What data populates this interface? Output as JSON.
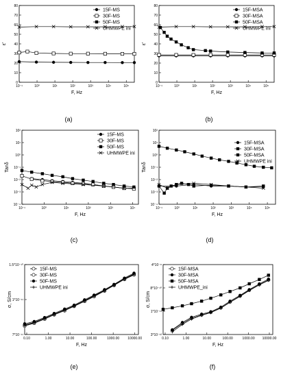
{
  "chart_data": [
    {
      "type": "line",
      "panel": "(a)",
      "caption": "(a)",
      "xlabel": "F, Hz",
      "ylabel": "ε'",
      "xscale": "log",
      "xlim": [
        0.1,
        500000
      ],
      "ylim": [
        0,
        80
      ],
      "x_ticks": [
        "10⁻¹",
        "10⁰",
        "10¹",
        "10²",
        "10³",
        "10⁴",
        "10⁵"
      ],
      "y_ticks": [
        "0",
        "10",
        "20",
        "30",
        "40",
        "50",
        "60",
        "70",
        "80"
      ],
      "legend_position": "top-right",
      "series": [
        {
          "name": "15F-MS",
          "marker": "filled-circle",
          "x": [
            0.1,
            1,
            10,
            100,
            1000,
            10000,
            100000,
            500000
          ],
          "y": [
            21.5,
            21,
            20.8,
            20.7,
            20.6,
            20.6,
            20.5,
            20.5
          ]
        },
        {
          "name": "30F-MS",
          "marker": "open-square",
          "x": [
            0.1,
            0.3,
            1,
            10,
            100,
            1000,
            10000,
            100000,
            500000
          ],
          "y": [
            31,
            32,
            30.5,
            30,
            29.8,
            29.8,
            29.7,
            29.6,
            29.6
          ]
        },
        {
          "name": "50F-MS",
          "marker": "filled-square",
          "x": [],
          "y": []
        },
        {
          "name": "UHMWPE ini",
          "marker": "x",
          "x": [
            0.1,
            1,
            10,
            100,
            1000,
            10000,
            100000,
            500000
          ],
          "y": [
            57.5,
            58,
            58,
            57.8,
            57.8,
            57.8,
            58,
            58
          ]
        }
      ]
    },
    {
      "type": "line",
      "panel": "(b)",
      "caption": "(b)",
      "xlabel": "F, Hz",
      "ylabel": "ε'",
      "xscale": "log",
      "xlim": [
        0.1,
        500000
      ],
      "ylim": [
        0,
        80
      ],
      "x_ticks": [
        "10⁻¹",
        "10⁰",
        "10¹",
        "10²",
        "10³",
        "10⁴",
        "10⁵"
      ],
      "y_ticks": [
        "0",
        "10",
        "20",
        "30",
        "40",
        "50",
        "60",
        "70",
        "80"
      ],
      "legend_position": "top-right",
      "series": [
        {
          "name": "15F-MSA",
          "marker": "filled-circle",
          "x": [
            0.1,
            1,
            10,
            100,
            1000,
            10000,
            100000,
            500000
          ],
          "y": [
            27.5,
            27.5,
            27.5,
            27.5,
            27.5,
            27.5,
            27.5,
            27.5
          ]
        },
        {
          "name": "30F-MSA",
          "marker": "open-square",
          "x": [
            0.1,
            1,
            10,
            100,
            1000,
            10000,
            100000,
            500000
          ],
          "y": [
            28.5,
            28.5,
            28.5,
            28.5,
            28.5,
            28.5,
            28.5,
            28.5
          ]
        },
        {
          "name": "50F-MSA",
          "marker": "filled-square",
          "x": [
            0.12,
            0.2,
            0.3,
            0.5,
            1,
            2,
            5,
            10,
            50,
            100,
            1000,
            10000,
            100000,
            500000
          ],
          "y": [
            57,
            52,
            48,
            45,
            42,
            39,
            36,
            34,
            33,
            32.5,
            31.5,
            31,
            30.5,
            30.5
          ]
        },
        {
          "name": "UHMWPE ini",
          "marker": "x",
          "x": [
            0.1,
            1,
            10,
            100,
            1000,
            10000,
            100000,
            500000
          ],
          "y": [
            57.5,
            58,
            58,
            57.8,
            57.8,
            57.8,
            58,
            58
          ]
        }
      ]
    },
    {
      "type": "scatter",
      "panel": "(c)",
      "caption": "(c)",
      "xlabel": "F, Hz",
      "ylabel": "Tanδ",
      "xscale": "log",
      "yscale": "log",
      "xlim": [
        0.1,
        50000
      ],
      "ylim": [
        0.0001,
        100
      ],
      "x_ticks": [
        "10⁻¹",
        "10⁰",
        "10¹",
        "10²",
        "10³",
        "10⁴"
      ],
      "y_ticks": [
        "10⁻⁴",
        "10⁻³",
        "10⁻²",
        "10⁻¹",
        "10⁰",
        "10¹",
        "10²"
      ],
      "legend_position": "top-right",
      "series": [
        {
          "name": "15F-MS",
          "marker": "filled-circle",
          "x": [
            0.3,
            1,
            3,
            10,
            30,
            100,
            300,
            1000,
            3000,
            10000,
            30000
          ],
          "y": [
            0.012,
            0.01,
            0.008,
            0.007,
            0.006,
            0.005,
            0.004,
            0.003,
            0.0025,
            0.002,
            0.002
          ]
        },
        {
          "name": "30F-MS",
          "marker": "open-square",
          "x": [
            0.1,
            0.3,
            1,
            3,
            10,
            30,
            100,
            300,
            1000,
            3000,
            10000,
            30000
          ],
          "y": [
            0.02,
            0.011,
            0.008,
            0.007,
            0.006,
            0.005,
            0.0045,
            0.004,
            0.003,
            0.0025,
            0.002,
            0.0018
          ]
        },
        {
          "name": "50F-MS",
          "marker": "filled-square",
          "x": [
            0.1,
            0.3,
            1,
            3,
            10,
            30,
            100,
            300,
            1000,
            3000,
            10000,
            30000
          ],
          "y": [
            0.055,
            0.04,
            0.03,
            0.022,
            0.017,
            0.012,
            0.009,
            0.007,
            0.005,
            0.004,
            0.003,
            0.0025
          ]
        },
        {
          "name": "UHMWPE ini",
          "marker": "x",
          "x": [
            0.1,
            0.2,
            0.3,
            0.5,
            1,
            3,
            10,
            100,
            1000,
            10000
          ],
          "y": [
            0.004,
            0.002,
            0.0035,
            0.0025,
            0.004,
            0.006,
            0.005,
            0.004,
            0.003,
            0.002
          ]
        }
      ]
    },
    {
      "type": "scatter",
      "panel": "(d)",
      "caption": "(d)",
      "xlabel": "F, Hz",
      "ylabel": "Tanδ",
      "xscale": "log",
      "yscale": "log",
      "xlim": [
        0.1,
        500000
      ],
      "ylim": [
        0.0001,
        100
      ],
      "x_ticks": [
        "10⁻¹",
        "10⁰",
        "10¹",
        "10²",
        "10³",
        "10⁴",
        "10⁵"
      ],
      "y_ticks": [
        "10⁻⁴",
        "10⁻³",
        "10⁻²",
        "10⁻¹",
        "10⁰",
        "10¹",
        "10²"
      ],
      "legend_position": "center-right",
      "series": [
        {
          "name": "15F-MSA",
          "marker": "filled-circle",
          "x": [
            0.1,
            1,
            10,
            100,
            1000,
            10000,
            100000
          ],
          "y": [
            0.003,
            0.003,
            0.004,
            0.003,
            0.003,
            0.0025,
            0.0025
          ]
        },
        {
          "name": "30F-MSA",
          "marker": "filled-square",
          "x": [
            0.1,
            0.2,
            0.3,
            0.5,
            1,
            2,
            5,
            10,
            100,
            1000,
            10000,
            100000
          ],
          "y": [
            0.003,
            0.0008,
            0.002,
            0.003,
            0.004,
            0.005,
            0.004,
            0.003,
            0.0035,
            0.003,
            0.0025,
            0.003
          ]
        },
        {
          "name": "50F-MSA",
          "marker": "filled-square",
          "x": [
            0.1,
            0.3,
            1,
            3,
            10,
            30,
            100,
            300,
            1000,
            3000,
            10000,
            30000,
            100000,
            300000
          ],
          "y": [
            5,
            3.5,
            2.5,
            1.8,
            1.2,
            0.8,
            0.55,
            0.4,
            0.3,
            0.22,
            0.16,
            0.12,
            0.1,
            0.09
          ]
        },
        {
          "name": "UHMWPE ini",
          "marker": "x",
          "x": [
            0.1,
            0.3,
            1,
            10,
            100,
            1000,
            10000,
            100000
          ],
          "y": [
            0.004,
            0.002,
            0.004,
            0.005,
            0.004,
            0.003,
            0.0025,
            0.002
          ]
        }
      ]
    },
    {
      "type": "line",
      "panel": "(e)",
      "caption": "(e)",
      "xlabel": "F, Hz",
      "ylabel": "σ, S/cm",
      "xscale": "log",
      "yscale": "log",
      "xlim": [
        0.1,
        50000
      ],
      "ylim": [
        1e-12,
        3e-10
      ],
      "x_ticks": [
        "0.10",
        "1.00",
        "10.00",
        "100.00",
        "1000.00",
        "10000.00"
      ],
      "y_ticks": [
        "7*10⁻¹¹",
        "1*10⁻¹¹",
        "1.5*10⁻¹⁰"
      ],
      "legend_position": "top-left",
      "series": [
        {
          "name": "15F-MS",
          "marker": "line-open-circle",
          "x": [
            0.1,
            0.3,
            1,
            3,
            10,
            30,
            100,
            300,
            1000,
            3000,
            10000,
            30000
          ],
          "y": [
            2e-12,
            2.5e-12,
            3.5e-12,
            5e-12,
            7e-12,
            1e-11,
            1.5e-11,
            2.2e-11,
            3.5e-11,
            5.5e-11,
            9e-11,
            1.3e-10
          ]
        },
        {
          "name": "30F-MS",
          "marker": "line-open-circle",
          "x": [
            0.1,
            0.3,
            1,
            3,
            10,
            30,
            100,
            300,
            1000,
            3000,
            10000,
            30000
          ],
          "y": [
            2.2e-12,
            2.7e-12,
            3.8e-12,
            5.3e-12,
            7.5e-12,
            1.05e-11,
            1.6e-11,
            2.4e-11,
            3.7e-11,
            5.8e-11,
            9.5e-11,
            1.4e-10
          ]
        },
        {
          "name": "50F-MS",
          "marker": "line-filled-circle",
          "x": [
            0.1,
            0.3,
            1,
            3,
            10,
            30,
            100,
            300,
            1000,
            3000,
            10000,
            30000
          ],
          "y": [
            2.4e-12,
            2.9e-12,
            4e-12,
            5.6e-12,
            8e-12,
            1.1e-11,
            1.7e-11,
            2.5e-11,
            3.9e-11,
            6e-11,
            1e-10,
            1.5e-10
          ]
        },
        {
          "name": "UHMWPE ini",
          "marker": "line-cross",
          "x": [
            0.1,
            0.3,
            1,
            3,
            10,
            30,
            100,
            300,
            1000,
            3000,
            10000,
            30000
          ],
          "y": [
            2.1e-12,
            2.6e-12,
            3.6e-12,
            5.1e-12,
            7.2e-12,
            1e-11,
            1.55e-11,
            2.3e-11,
            3.6e-11,
            5.6e-11,
            9.2e-11,
            1.35e-10
          ]
        }
      ]
    },
    {
      "type": "line",
      "panel": "(f)",
      "caption": "(f)",
      "xlabel": "F, Hz",
      "ylabel": "σ, S/cm",
      "xscale": "log",
      "yscale": "log",
      "xlim": [
        0.1,
        50000
      ],
      "ylim": [
        1e-12,
        1e-09
      ],
      "x_ticks": [
        "0.10",
        "1.00",
        "10.00",
        "100.00",
        "1000.00",
        "10000.00"
      ],
      "y_ticks": [
        "3*10⁻¹²",
        "1*10⁻¹¹",
        "8*10⁻¹⁰",
        "4*10⁻⁸"
      ],
      "legend_position": "top-left",
      "series": [
        {
          "name": "15F-MSA",
          "marker": "line-open-circle",
          "x": [
            0.3,
            1,
            3,
            10,
            30,
            100,
            300,
            1000,
            3000,
            10000,
            30000
          ],
          "y": [
            1.5e-12,
            3e-12,
            5e-12,
            7e-12,
            9e-12,
            1.4e-11,
            2.5e-11,
            4.5e-11,
            8e-11,
            1.4e-10,
            2.2e-10
          ]
        },
        {
          "name": "30F-MSA",
          "marker": "line-filled-circle",
          "x": [
            0.3,
            1,
            3,
            10,
            30,
            100,
            300,
            1000,
            3000,
            10000,
            30000
          ],
          "y": [
            1.6e-12,
            3.3e-12,
            5.5e-12,
            7.5e-12,
            9.5e-12,
            1.5e-11,
            2.7e-11,
            4.8e-11,
            8.5e-11,
            1.5e-10,
            2.4e-10
          ]
        },
        {
          "name": "50F-MSA",
          "marker": "line-filled-square",
          "x": [
            0.1,
            0.3,
            1,
            3,
            10,
            30,
            100,
            300,
            1000,
            3000,
            10000,
            30000
          ],
          "y": [
            1.2e-11,
            1.4e-11,
            1.7e-11,
            2.1e-11,
            2.7e-11,
            3.6e-11,
            5e-11,
            7e-11,
            1e-10,
            1.5e-10,
            2.3e-10,
            3.5e-10
          ]
        },
        {
          "name": "UHMWPE_ini",
          "marker": "line-cross",
          "x": [
            0.3,
            1,
            3,
            10,
            30,
            100,
            300,
            1000,
            3000,
            10000,
            30000
          ],
          "y": [
            1.3e-12,
            2.7e-12,
            4.6e-12,
            6.6e-12,
            8.6e-12,
            1.35e-11,
            2.4e-11,
            4.3e-11,
            7.7e-11,
            1.35e-10,
            2.1e-10
          ]
        }
      ]
    }
  ]
}
